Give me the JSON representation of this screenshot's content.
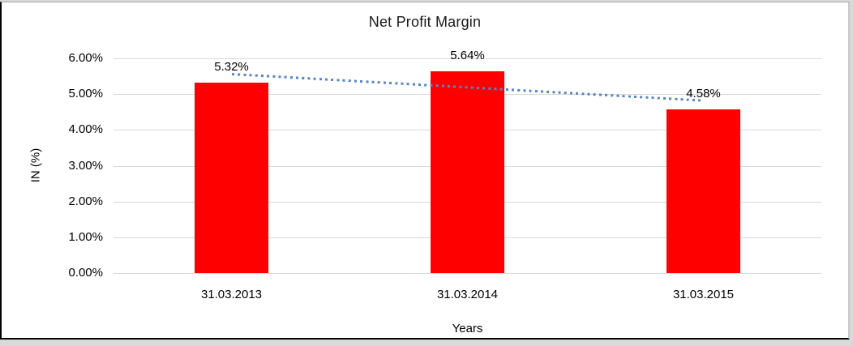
{
  "chart_data": {
    "type": "bar",
    "title": "Net Profit Margin",
    "categories": [
      "31.03.2013",
      "31.03.2014",
      "31.03.2015"
    ],
    "values": [
      5.32,
      5.64,
      4.58
    ],
    "data_labels": [
      "5.32%",
      "5.64%",
      "4.58%"
    ],
    "xlabel": "Years",
    "ylabel": "IN (%)",
    "ylim": [
      0,
      6
    ],
    "ytick_labels": [
      "0.00%",
      "1.00%",
      "2.00%",
      "3.00%",
      "4.00%",
      "5.00%",
      "6.00%"
    ],
    "grid": true,
    "legend": "none",
    "bar_color": "#ff0000",
    "trendline": {
      "type": "linear",
      "style": "dotted",
      "color": "#5585c8",
      "start_value": 5.55,
      "end_value": 4.81
    }
  },
  "colors": {
    "gridline": "#d9d9d9",
    "text": "#000000",
    "plot_bg": "#ffffff",
    "outer_bg": "#d9d9d9",
    "frame_border": "#000000"
  }
}
